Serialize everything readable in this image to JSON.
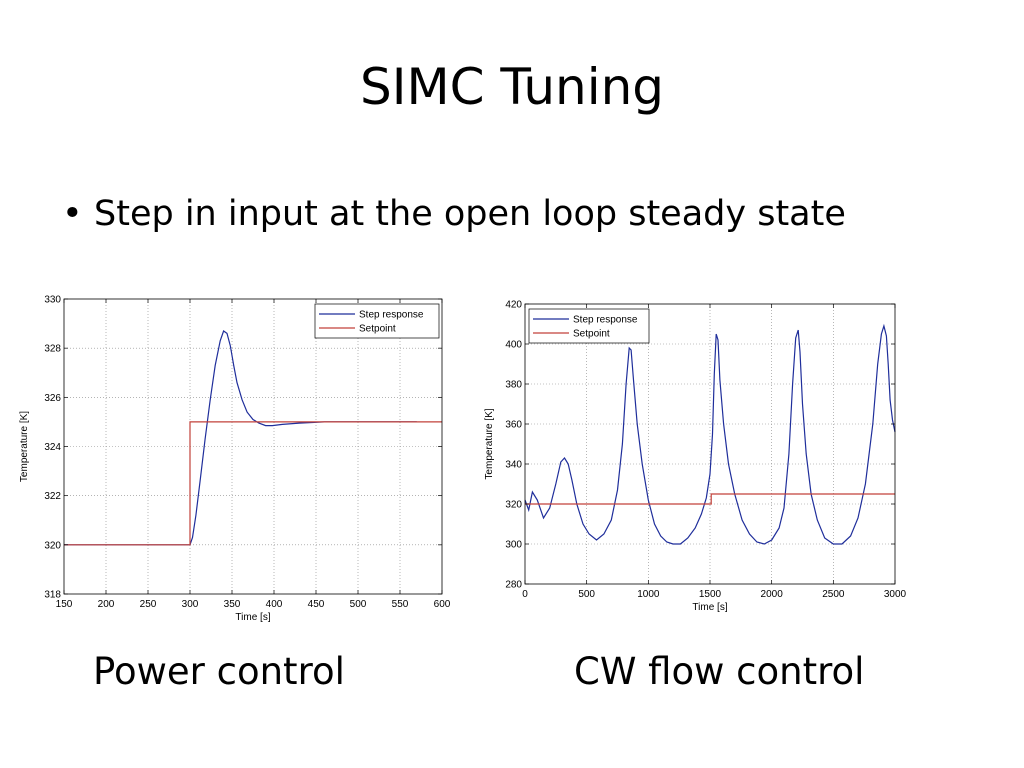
{
  "slide": {
    "title": "SIMC Tuning",
    "bullet": "Step in input at the open loop steady state",
    "bullet_symbol": "•",
    "captions": {
      "left": "Power control",
      "right": "CW flow control"
    }
  },
  "colors": {
    "step_response": "#1f2e9b",
    "setpoint": "#c2413a",
    "grid": "#888888",
    "axes": "#000000"
  },
  "chart_data": [
    {
      "type": "line",
      "xlabel": "Time [s]",
      "ylabel": "Temperature [K]",
      "xlim": [
        150,
        600
      ],
      "ylim": [
        318,
        330
      ],
      "xticks": [
        150,
        200,
        250,
        300,
        350,
        400,
        450,
        500,
        550,
        600
      ],
      "yticks": [
        318,
        320,
        322,
        324,
        326,
        328,
        330
      ],
      "grid": true,
      "legend_position": "top-right",
      "series": [
        {
          "name": "Step response",
          "x": [
            150,
            300,
            303,
            307,
            312,
            318,
            324,
            330,
            336,
            340,
            344,
            348,
            352,
            356,
            362,
            368,
            375,
            382,
            390,
            398,
            410,
            430,
            460,
            500,
            540,
            570
          ],
          "y": [
            320,
            320,
            320.3,
            321.2,
            322.6,
            324.3,
            325.9,
            327.3,
            328.3,
            328.7,
            328.6,
            328.1,
            327.3,
            326.6,
            325.9,
            325.4,
            325.1,
            324.95,
            324.85,
            324.85,
            324.9,
            324.95,
            325,
            325,
            325,
            325
          ]
        },
        {
          "name": "Setpoint",
          "x": [
            150,
            300,
            300,
            600
          ],
          "y": [
            320,
            320,
            325,
            325
          ]
        }
      ]
    },
    {
      "type": "line",
      "xlabel": "Time [s]",
      "ylabel": "Temperature [K]",
      "xlim": [
        0,
        3000
      ],
      "ylim": [
        280,
        420
      ],
      "xticks": [
        0,
        500,
        1000,
        1500,
        2000,
        2500,
        3000
      ],
      "yticks": [
        280,
        300,
        320,
        340,
        360,
        380,
        400,
        420
      ],
      "grid": true,
      "legend_position": "top-left",
      "series": [
        {
          "name": "Step response",
          "x": [
            0,
            30,
            60,
            100,
            150,
            200,
            250,
            290,
            320,
            350,
            380,
            420,
            470,
            520,
            580,
            640,
            700,
            750,
            790,
            820,
            845,
            860,
            880,
            910,
            950,
            1000,
            1050,
            1100,
            1150,
            1200,
            1260,
            1320,
            1380,
            1430,
            1470,
            1500,
            1520,
            1535,
            1550,
            1565,
            1580,
            1610,
            1650,
            1700,
            1760,
            1820,
            1880,
            1940,
            2000,
            2060,
            2100,
            2140,
            2170,
            2195,
            2215,
            2230,
            2250,
            2280,
            2320,
            2370,
            2430,
            2500,
            2570,
            2640,
            2700,
            2760,
            2820,
            2860,
            2890,
            2910,
            2930,
            2945,
            2960,
            2980,
            3000
          ],
          "y": [
            322,
            317,
            326,
            322,
            313,
            318,
            330,
            341,
            343,
            340,
            332,
            320,
            310,
            305,
            302,
            305,
            312,
            327,
            350,
            380,
            398,
            397,
            382,
            360,
            340,
            322,
            310,
            304,
            301,
            300,
            300,
            303,
            308,
            315,
            323,
            335,
            355,
            385,
            405,
            402,
            382,
            360,
            340,
            325,
            312,
            305,
            301,
            300,
            302,
            308,
            318,
            345,
            380,
            403,
            407,
            396,
            370,
            345,
            325,
            312,
            303,
            300,
            300,
            304,
            313,
            330,
            360,
            390,
            405,
            409,
            404,
            390,
            372,
            362,
            356
          ]
        },
        {
          "name": "Setpoint",
          "x": [
            0,
            1510,
            1510,
            3000
          ],
          "y": [
            320,
            320,
            325,
            325
          ]
        }
      ]
    }
  ]
}
